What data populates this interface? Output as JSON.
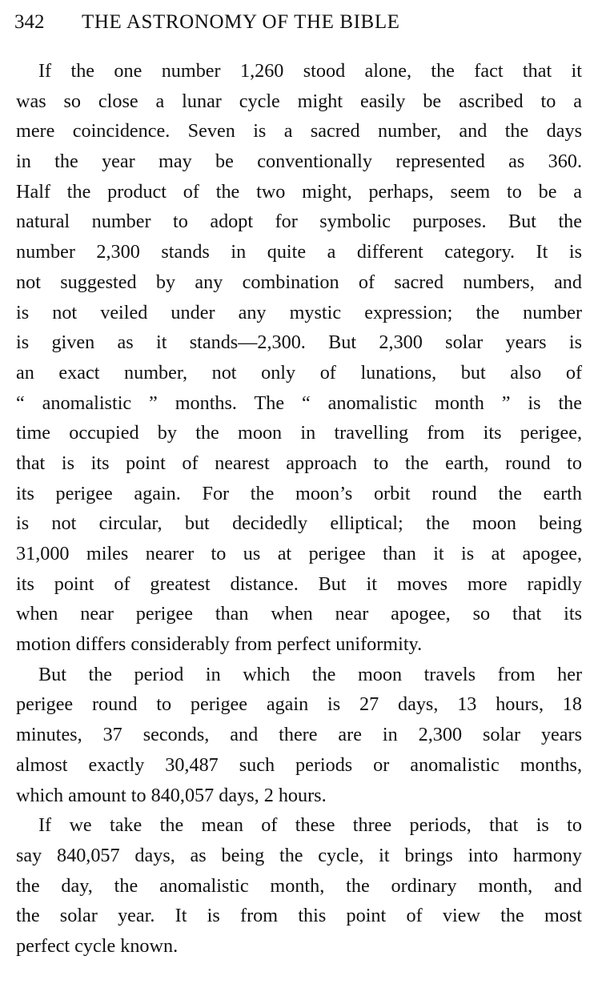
{
  "header": {
    "page_number": "342",
    "running_title": "THE ASTRONOMY OF THE BIBLE"
  },
  "paragraphs": [
    [
      "If the one number 1,260 stood alone, the fact that it",
      "was so close a lunar cycle might easily be ascribed to a",
      "mere coincidence.  Seven is a sacred number, and the days",
      "in the year may be conventionally represented as 360.",
      "Half the product of the two might, perhaps, seem to be a",
      "natural number to adopt for symbolic purposes.  But the",
      "number 2,300 stands in quite a different category.  It is",
      "not suggested by any combination of sacred numbers, and",
      "is not veiled under any mystic expression; the number",
      "is given as it stands—2,300.  But 2,300 solar years is",
      "an exact number, not only of lunations, but also of",
      "“ anomalistic ” months.  The “ anomalistic month ” is the",
      "time occupied by the moon in travelling from its perigee,",
      "that is its point of nearest approach to the earth, round to",
      "its perigee again.  For the moon’s orbit round the earth",
      "is not circular, but decidedly elliptical; the moon being",
      "31,000 miles nearer to us at perigee than it is at apogee,",
      "its point of greatest distance.  But it moves more rapidly",
      "when near perigee than when near apogee, so that its",
      "motion differs considerably from perfect uniformity."
    ],
    [
      "But the period in which the moon travels from her",
      "perigee round to perigee again is 27 days, 13 hours, 18",
      "minutes, 37 seconds, and there are in 2,300 solar years",
      "almost exactly 30,487 such periods or anomalistic months,",
      "which amount to 840,057 days, 2 hours."
    ],
    [
      "If we take the mean of these three periods, that is to",
      "say 840,057 days, as being the cycle, it brings into harmony",
      "the day, the anomalistic month, the ordinary month, and",
      "the solar year.  It is from this point of view the most",
      "perfect cycle known."
    ]
  ]
}
